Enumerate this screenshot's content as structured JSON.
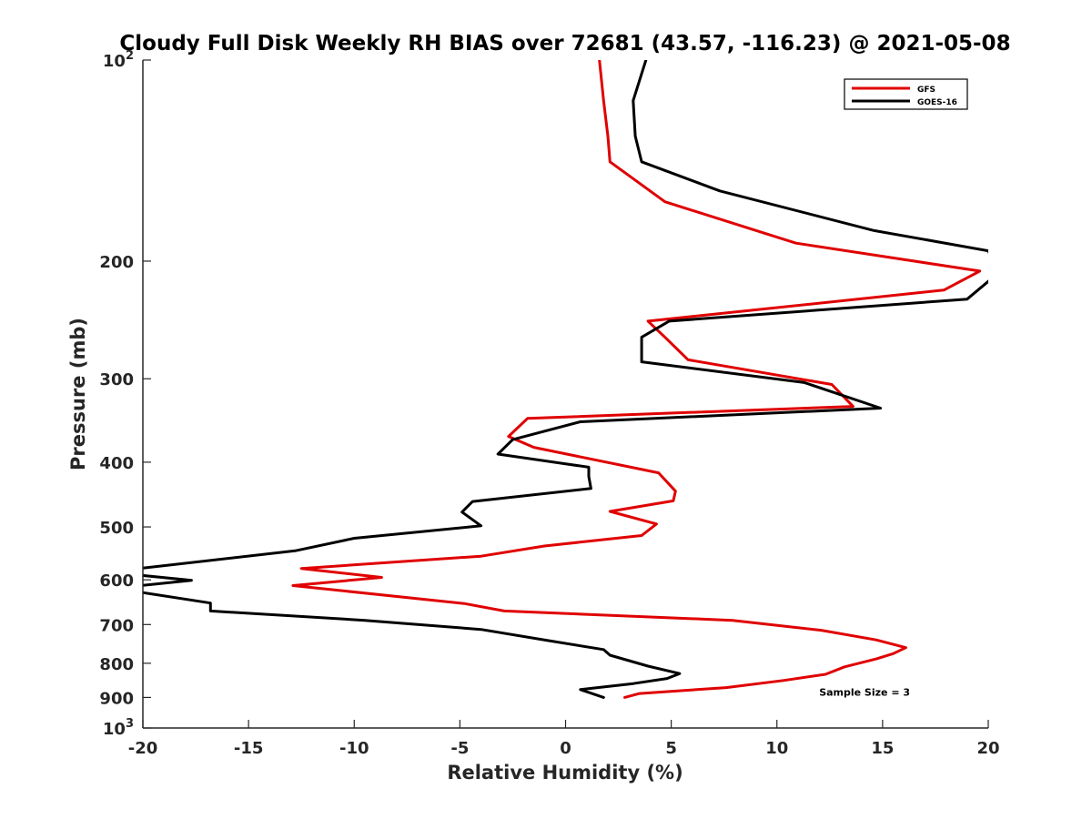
{
  "chart_data": {
    "type": "line",
    "title": "Cloudy Full Disk Weekly RH BIAS over 72681 (43.57, -116.23) @ 2021-05-08",
    "xlabel": "Relative Humidity (%)",
    "ylabel": "Pressure (mb)",
    "xlim": [
      -20,
      20
    ],
    "ylim": [
      100,
      1000
    ],
    "y_scale": "log",
    "y_reversed": true,
    "grid": false,
    "legend_position": "top-right",
    "x_ticks": [
      -20,
      -15,
      -10,
      -5,
      0,
      5,
      10,
      15,
      20
    ],
    "x_tick_labels": [
      "-20",
      "-15",
      "-10",
      "-5",
      "0",
      "5",
      "10",
      "15",
      "20"
    ],
    "y_ticks": [
      {
        "value": 100,
        "base": "10",
        "exp": "2"
      },
      {
        "value": 200,
        "label": "200"
      },
      {
        "value": 300,
        "label": "300"
      },
      {
        "value": 400,
        "label": "400"
      },
      {
        "value": 500,
        "label": "500"
      },
      {
        "value": 600,
        "label": "600"
      },
      {
        "value": 700,
        "label": "700"
      },
      {
        "value": 800,
        "label": "800"
      },
      {
        "value": 900,
        "label": "900"
      },
      {
        "value": 1000,
        "base": "10",
        "exp": "3"
      }
    ],
    "series": [
      {
        "name": "GFS",
        "color": "#e00000",
        "points": [
          [
            1.6,
            100
          ],
          [
            1.8,
            115
          ],
          [
            2.0,
            130
          ],
          [
            2.1,
            142
          ],
          [
            4.7,
            163
          ],
          [
            10.9,
            188
          ],
          [
            19.6,
            207
          ],
          [
            17.9,
            221
          ],
          [
            3.9,
            246
          ],
          [
            4.7,
            260
          ],
          [
            5.8,
            281
          ],
          [
            12.6,
            306
          ],
          [
            13.6,
            330
          ],
          [
            -1.8,
            344
          ],
          [
            -2.7,
            366
          ],
          [
            -1.5,
            380
          ],
          [
            4.4,
            415
          ],
          [
            5.2,
            442
          ],
          [
            5.1,
            457
          ],
          [
            2.1,
            474
          ],
          [
            4.3,
            495
          ],
          [
            3.6,
            515
          ],
          [
            -1.0,
            534
          ],
          [
            -4.0,
            553
          ],
          [
            -12.5,
            577
          ],
          [
            -8.7,
            595
          ],
          [
            -12.9,
            612
          ],
          [
            -4.8,
            651
          ],
          [
            -2.9,
            668
          ],
          [
            7.9,
            690
          ],
          [
            12.1,
            714
          ],
          [
            14.7,
            738
          ],
          [
            16.1,
            758
          ],
          [
            15.5,
            774
          ],
          [
            14.7,
            788
          ],
          [
            13.2,
            810
          ],
          [
            12.3,
            831
          ],
          [
            10.3,
            849
          ],
          [
            7.6,
            870
          ],
          [
            3.5,
            888
          ],
          [
            2.8,
            900
          ]
        ]
      },
      {
        "name": "GOES-16",
        "color": "#000000",
        "points": [
          [
            3.8,
            100
          ],
          [
            3.2,
            115
          ],
          [
            3.3,
            130
          ],
          [
            3.6,
            142
          ],
          [
            7.3,
            157
          ],
          [
            14.6,
            180
          ],
          [
            20.0,
            193
          ],
          [
            20.5,
            208
          ],
          [
            19.0,
            228
          ],
          [
            4.9,
            246
          ],
          [
            3.6,
            260
          ],
          [
            3.6,
            283
          ],
          [
            11.3,
            304
          ],
          [
            14.9,
            332
          ],
          [
            0.7,
            348
          ],
          [
            -2.5,
            370
          ],
          [
            -3.2,
            389
          ],
          [
            1.1,
            407
          ],
          [
            1.1,
            420
          ],
          [
            1.2,
            438
          ],
          [
            -4.4,
            458
          ],
          [
            -4.9,
            475
          ],
          [
            -4.0,
            498
          ],
          [
            -10.0,
            520
          ],
          [
            -12.8,
            543
          ],
          [
            -20.0,
            576
          ],
          [
            -20.5,
            589
          ],
          [
            -17.7,
            601
          ],
          [
            -20.3,
            613
          ],
          [
            -20.0,
            627
          ],
          [
            -16.8,
            650
          ],
          [
            -16.8,
            668
          ],
          [
            -9.5,
            690
          ],
          [
            -4.0,
            712
          ],
          [
            -0.8,
            740
          ],
          [
            1.8,
            763
          ],
          [
            2.1,
            778
          ],
          [
            3.9,
            808
          ],
          [
            5.4,
            829
          ],
          [
            4.8,
            843
          ],
          [
            3.2,
            858
          ],
          [
            0.7,
            876
          ],
          [
            1.8,
            900
          ]
        ]
      }
    ],
    "annotations": [
      {
        "text": "Sample Size = 3",
        "x": 12.0,
        "y": 895
      }
    ]
  }
}
